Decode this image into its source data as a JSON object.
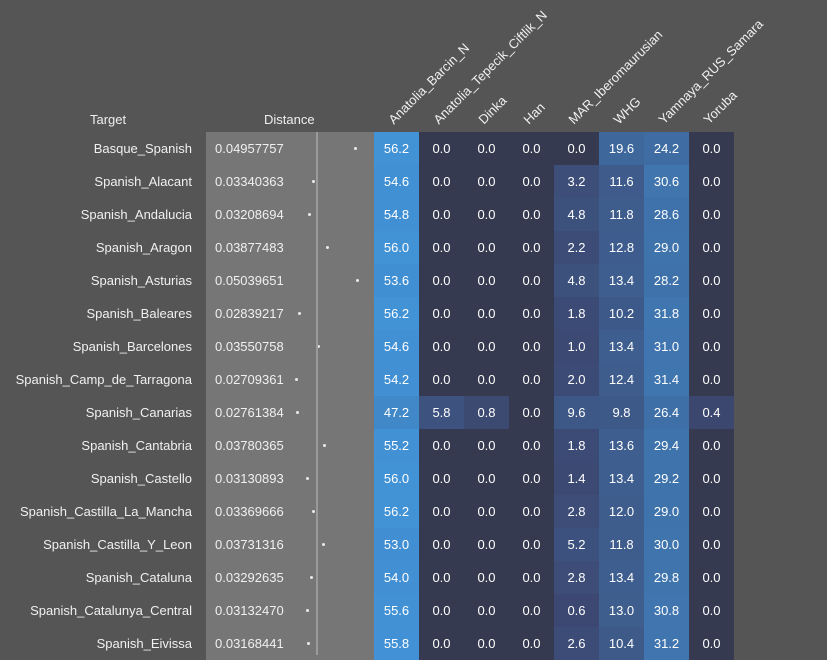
{
  "headers": {
    "target": "Target",
    "distance": "Distance",
    "columns": [
      "Anatolia_Barcin_N",
      "Anatolia_Tepecik_Ciftlik_N",
      "Dinka",
      "Han",
      "MAR_Iberomaurusian",
      "WHG",
      "Yamnaya_RUS_Samara",
      "Yoruba"
    ]
  },
  "colors": {
    "background": "#555555",
    "distance_panel": "#767676",
    "zero_cell": "#363a50"
  },
  "rows": [
    {
      "target": "Basque_Spanish",
      "distance": "0.04957757",
      "values": [
        "56.2",
        "0.0",
        "0.0",
        "0.0",
        "0.0",
        "19.6",
        "24.2",
        "0.0"
      ]
    },
    {
      "target": "Spanish_Alacant",
      "distance": "0.03340363",
      "values": [
        "54.6",
        "0.0",
        "0.0",
        "0.0",
        "3.2",
        "11.6",
        "30.6",
        "0.0"
      ]
    },
    {
      "target": "Spanish_Andalucia",
      "distance": "0.03208694",
      "values": [
        "54.8",
        "0.0",
        "0.0",
        "0.0",
        "4.8",
        "11.8",
        "28.6",
        "0.0"
      ]
    },
    {
      "target": "Spanish_Aragon",
      "distance": "0.03877483",
      "values": [
        "56.0",
        "0.0",
        "0.0",
        "0.0",
        "2.2",
        "12.8",
        "29.0",
        "0.0"
      ]
    },
    {
      "target": "Spanish_Asturias",
      "distance": "0.05039651",
      "values": [
        "53.6",
        "0.0",
        "0.0",
        "0.0",
        "4.8",
        "13.4",
        "28.2",
        "0.0"
      ]
    },
    {
      "target": "Spanish_Baleares",
      "distance": "0.02839217",
      "values": [
        "56.2",
        "0.0",
        "0.0",
        "0.0",
        "1.8",
        "10.2",
        "31.8",
        "0.0"
      ]
    },
    {
      "target": "Spanish_Barcelones",
      "distance": "0.03550758",
      "values": [
        "54.6",
        "0.0",
        "0.0",
        "0.0",
        "1.0",
        "13.4",
        "31.0",
        "0.0"
      ]
    },
    {
      "target": "Spanish_Camp_de_Tarragona",
      "distance": "0.02709361",
      "values": [
        "54.2",
        "0.0",
        "0.0",
        "0.0",
        "2.0",
        "12.4",
        "31.4",
        "0.0"
      ]
    },
    {
      "target": "Spanish_Canarias",
      "distance": "0.02761384",
      "values": [
        "47.2",
        "5.8",
        "0.8",
        "0.0",
        "9.6",
        "9.8",
        "26.4",
        "0.4"
      ]
    },
    {
      "target": "Spanish_Cantabria",
      "distance": "0.03780365",
      "values": [
        "55.2",
        "0.0",
        "0.0",
        "0.0",
        "1.8",
        "13.6",
        "29.4",
        "0.0"
      ]
    },
    {
      "target": "Spanish_Castello",
      "distance": "0.03130893",
      "values": [
        "56.0",
        "0.0",
        "0.0",
        "0.0",
        "1.4",
        "13.4",
        "29.2",
        "0.0"
      ]
    },
    {
      "target": "Spanish_Castilla_La_Mancha",
      "distance": "0.03369666",
      "values": [
        "56.2",
        "0.0",
        "0.0",
        "0.0",
        "2.8",
        "12.0",
        "29.0",
        "0.0"
      ]
    },
    {
      "target": "Spanish_Castilla_Y_Leon",
      "distance": "0.03731316",
      "values": [
        "53.0",
        "0.0",
        "0.0",
        "0.0",
        "5.2",
        "11.8",
        "30.0",
        "0.0"
      ]
    },
    {
      "target": "Spanish_Cataluna",
      "distance": "0.03292635",
      "values": [
        "54.0",
        "0.0",
        "0.0",
        "0.0",
        "2.8",
        "13.4",
        "29.8",
        "0.0"
      ]
    },
    {
      "target": "Spanish_Catalunya_Central",
      "distance": "0.03132470",
      "values": [
        "55.6",
        "0.0",
        "0.0",
        "0.0",
        "0.6",
        "13.0",
        "30.8",
        "0.0"
      ]
    },
    {
      "target": "Spanish_Eivissa",
      "distance": "0.03168441",
      "values": [
        "55.8",
        "0.0",
        "0.0",
        "0.0",
        "2.6",
        "10.4",
        "31.2",
        "0.0"
      ]
    }
  ]
}
